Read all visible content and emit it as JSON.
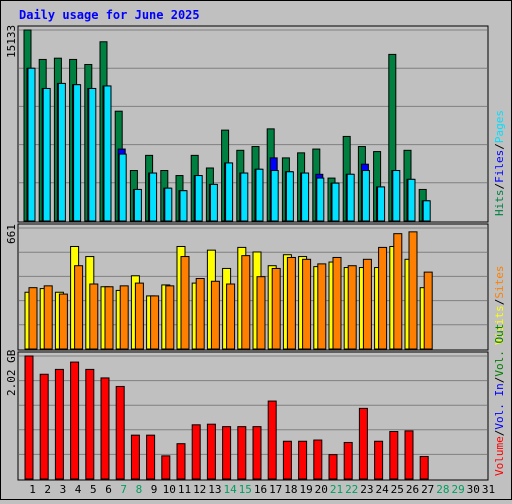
{
  "title": "Daily usage for June 2025",
  "colors": {
    "background": "#c0c0c0",
    "hits": "#008040",
    "files": "#0000ff",
    "pages": "#00e0ff",
    "visits": "#ffff00",
    "sites": "#ff8000",
    "volume": "#ff0000",
    "title": "#0000ff",
    "weekday_label": "#008000",
    "weekend_label": "#00a060"
  },
  "chart_data": [
    {
      "type": "bar",
      "categories": [
        "1",
        "2",
        "3",
        "4",
        "5",
        "6",
        "7",
        "8",
        "9",
        "10",
        "11",
        "12",
        "13",
        "14",
        "15",
        "16",
        "17",
        "18",
        "19",
        "20",
        "21",
        "22",
        "23",
        "24",
        "25",
        "26",
        "27",
        "28",
        "29",
        "30",
        "31"
      ],
      "ymax_label": "15133",
      "ylim": [
        0,
        15133
      ],
      "series": [
        {
          "name": "Hits",
          "values": [
            15133,
            12800,
            12900,
            12800,
            12400,
            14200,
            8700,
            4000,
            5200,
            4000,
            3600,
            5200,
            4200,
            7200,
            5600,
            5900,
            7300,
            5000,
            5400,
            5700,
            3400,
            6700,
            5900,
            5500,
            13200,
            5600,
            2500,
            0,
            0,
            0,
            0
          ]
        },
        {
          "name": "Files",
          "values": [
            12100,
            10500,
            10900,
            10800,
            10500,
            10700,
            5700,
            2500,
            3800,
            2600,
            2400,
            3600,
            2900,
            4600,
            3800,
            4100,
            5000,
            3900,
            3800,
            3700,
            3000,
            3700,
            4500,
            2700,
            4000,
            3300,
            1600,
            0,
            0,
            0,
            0
          ]
        },
        {
          "name": "Pages",
          "values": [
            12100,
            10500,
            10900,
            10800,
            10500,
            10700,
            5300,
            2500,
            3800,
            2600,
            2400,
            3600,
            2900,
            4600,
            3800,
            4100,
            4000,
            3900,
            3800,
            3400,
            3000,
            3700,
            4000,
            2700,
            4000,
            3300,
            1600,
            0,
            0,
            0,
            0
          ]
        }
      ],
      "legend": [
        "Hits",
        "Files",
        "Pages"
      ]
    },
    {
      "type": "bar",
      "categories": [
        "1",
        "2",
        "3",
        "4",
        "5",
        "6",
        "7",
        "8",
        "9",
        "10",
        "11",
        "12",
        "13",
        "14",
        "15",
        "16",
        "17",
        "18",
        "19",
        "20",
        "21",
        "22",
        "23",
        "24",
        "25",
        "26",
        "27",
        "28",
        "29",
        "30",
        "31"
      ],
      "ymax_label": "661",
      "ylim": [
        0,
        661
      ],
      "series": [
        {
          "name": "Visits",
          "values": [
            310,
            330,
            310,
            560,
            505,
            340,
            320,
            400,
            290,
            350,
            560,
            360,
            540,
            440,
            555,
            530,
            455,
            515,
            505,
            450,
            475,
            445,
            445,
            445,
            560,
            490,
            335,
            0,
            0,
            0,
            0
          ]
        },
        {
          "name": "Sites",
          "values": [
            335,
            345,
            300,
            455,
            355,
            340,
            345,
            360,
            290,
            345,
            505,
            385,
            370,
            355,
            510,
            395,
            440,
            500,
            490,
            465,
            500,
            455,
            490,
            555,
            630,
            640,
            420,
            0,
            0,
            0,
            0
          ]
        }
      ],
      "legend": [
        "Visits",
        "Sites"
      ]
    },
    {
      "type": "bar",
      "categories": [
        "1",
        "2",
        "3",
        "4",
        "5",
        "6",
        "7",
        "8",
        "9",
        "10",
        "11",
        "12",
        "13",
        "14",
        "15",
        "16",
        "17",
        "18",
        "19",
        "20",
        "21",
        "22",
        "23",
        "24",
        "25",
        "26",
        "27",
        "28",
        "29",
        "30",
        "31"
      ],
      "ymax_label": "2.02 GB",
      "ylim": [
        0,
        2.02
      ],
      "series": [
        {
          "name": "Volume",
          "values": [
            2.02,
            1.72,
            1.8,
            1.92,
            1.8,
            1.66,
            1.52,
            0.72,
            0.72,
            0.38,
            0.58,
            0.89,
            0.9,
            0.86,
            0.86,
            0.86,
            1.28,
            0.62,
            0.62,
            0.64,
            0.4,
            0.6,
            1.16,
            0.62,
            0.78,
            0.79,
            0.37,
            0,
            0,
            0,
            0
          ]
        }
      ],
      "legend": [
        "Volume",
        "Vol. In",
        "Vol. Out"
      ]
    }
  ],
  "legends": {
    "top": [
      {
        "text": "Hits",
        "color": "#008040"
      },
      {
        "text": "/",
        "color": "#000000"
      },
      {
        "text": "Files",
        "color": "#0000ff"
      },
      {
        "text": "/",
        "color": "#000000"
      },
      {
        "text": "Pages",
        "color": "#00e0ff"
      }
    ],
    "middle": [
      {
        "text": "Visits",
        "color": "#ffff00"
      },
      {
        "text": "/",
        "color": "#000000"
      },
      {
        "text": "Sites",
        "color": "#ff8000"
      }
    ],
    "bottom": [
      {
        "text": "Vol. Out",
        "color": "#008000"
      },
      {
        "text": "/",
        "color": "#000000"
      },
      {
        "text": "Vol. In",
        "color": "#0000ff"
      },
      {
        "text": "/",
        "color": "#000000"
      },
      {
        "text": "Volume",
        "color": "#ff0000"
      }
    ]
  },
  "weekend_days": [
    "7",
    "8",
    "14",
    "15",
    "21",
    "22",
    "28",
    "29"
  ]
}
